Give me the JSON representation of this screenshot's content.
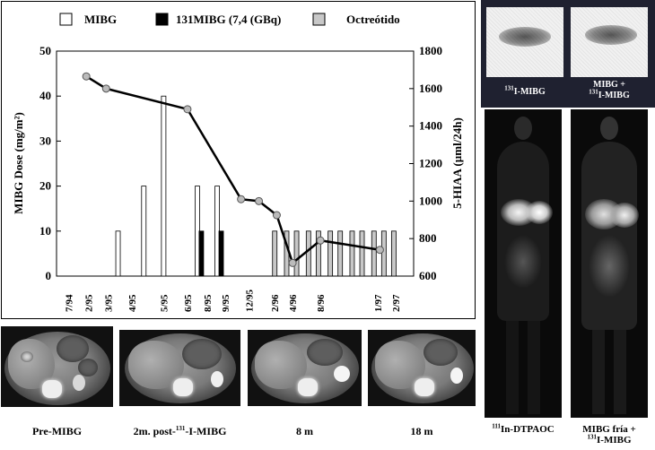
{
  "legend": {
    "items": [
      {
        "label": "MIBG",
        "color": "#ffffff"
      },
      {
        "label": "131MIBG (7,4 (GBq)",
        "color": "#000000"
      },
      {
        "label": "Octreótido",
        "color": "#c8c8c8"
      }
    ]
  },
  "chart_data": {
    "type": "bar+line",
    "xlabel": "",
    "ylabel": "MIBG Dose (mg/m²)",
    "y2label": "5-HIAA (µml/24h)",
    "ylim": [
      0,
      50
    ],
    "y2lim": [
      600,
      1800
    ],
    "y_ticks": [
      "0",
      "10",
      "20",
      "30",
      "40",
      "50"
    ],
    "y2_ticks": [
      "600",
      "800",
      "1000",
      "1200",
      "1400",
      "1600",
      "1800"
    ],
    "x_tick_labels": [
      "7/94",
      "2/95",
      "3/95",
      "4/95",
      "5/95",
      "6/95",
      "8/95",
      "9/95",
      "12/95",
      "2/96",
      "4/96",
      "8/96",
      "1/97",
      "2/97"
    ],
    "series": [
      {
        "name": "MIBG",
        "type": "bar",
        "color": "#ffffff",
        "points": [
          [
            3.1,
            10
          ],
          [
            4.4,
            20
          ],
          [
            5.4,
            40
          ],
          [
            7.1,
            20
          ],
          [
            8.1,
            20
          ]
        ]
      },
      {
        "name": "131MIBG (7,4 (GBq)",
        "type": "bar",
        "color": "#000000",
        "points": [
          [
            7.3,
            10
          ],
          [
            8.3,
            10
          ]
        ]
      },
      {
        "name": "Octreótido",
        "type": "bar",
        "color": "#c8c8c8",
        "points": [
          [
            11.0,
            10
          ],
          [
            11.6,
            10
          ],
          [
            12.1,
            10
          ],
          [
            12.7,
            10
          ],
          [
            13.2,
            10
          ],
          [
            13.8,
            10
          ],
          [
            14.3,
            10
          ],
          [
            14.9,
            10
          ],
          [
            15.4,
            10
          ],
          [
            16.0,
            10
          ],
          [
            16.5,
            10
          ],
          [
            17.0,
            10
          ]
        ]
      },
      {
        "name": "5-HIAA",
        "type": "line",
        "axis": "right",
        "points": [
          [
            1.5,
            1665
          ],
          [
            2.5,
            1600
          ],
          [
            6.6,
            1490
          ],
          [
            9.3,
            1010
          ],
          [
            10.2,
            1000
          ],
          [
            11.1,
            925
          ],
          [
            11.9,
            670
          ],
          [
            13.3,
            790
          ],
          [
            16.3,
            740
          ]
        ]
      }
    ]
  },
  "ct_scans": [
    {
      "caption": "Pre-MIBG"
    },
    {
      "caption_main": "2m. post-",
      "caption_sup": "131",
      "caption_end": "-I-MIBG"
    },
    {
      "caption": "8 m"
    },
    {
      "caption": "18 m"
    }
  ],
  "scintigraphy": {
    "small_left": {
      "sup": "131",
      "text": "I-MIBG"
    },
    "small_right": {
      "line1": "MIBG +",
      "line2_sup": "131",
      "line2_text": "I-MIBG"
    },
    "body_left": {
      "sup": "111",
      "text": "In-DTPAOC"
    },
    "body_right": {
      "line1": "MIBG fría +",
      "line2_sup": "131",
      "line2_text": "I-MIBG"
    }
  }
}
